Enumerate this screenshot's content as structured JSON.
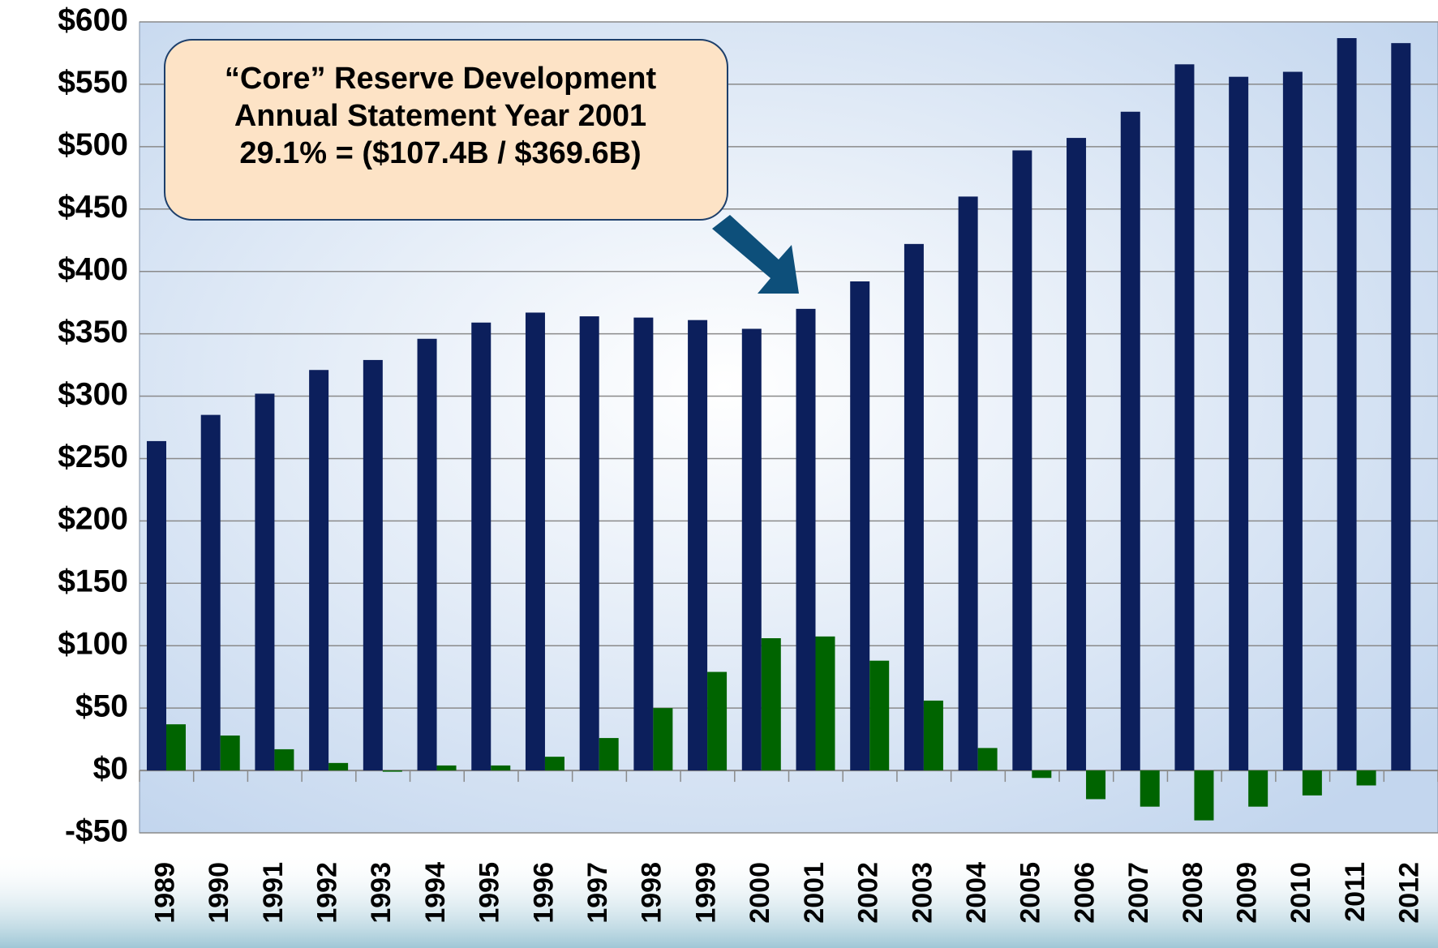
{
  "chart_data": {
    "type": "bar",
    "annotation": [
      "“Core” Reserve Development",
      "Annual Statement Year 2001",
      "29.1% = ($107.4B / $369.6B)"
    ],
    "categories": [
      "1989",
      "1990",
      "1991",
      "1992",
      "1993",
      "1994",
      "1995",
      "1996",
      "1997",
      "1998",
      "1999",
      "2000",
      "2001",
      "2002",
      "2003",
      "2004",
      "2005",
      "2006",
      "2007",
      "2008",
      "2009",
      "2010",
      "2011",
      "2012"
    ],
    "series": [
      {
        "color": "#0c1f5c",
        "values": [
          264,
          285,
          302,
          321,
          329,
          346,
          359,
          367,
          364,
          363,
          361,
          354,
          370,
          392,
          422,
          460,
          497,
          507,
          528,
          566,
          556,
          560,
          587,
          583
        ]
      },
      {
        "color": "#006400",
        "values": [
          37,
          28,
          17,
          6,
          -1,
          4,
          4,
          11,
          26,
          50,
          79,
          106,
          107.4,
          88,
          56,
          18,
          -6,
          -23,
          -29,
          -40,
          -29,
          -20,
          -12,
          null
        ]
      }
    ],
    "ylim": [
      -50,
      600
    ],
    "yticks": [
      {
        "value": -50,
        "label": "-$50"
      },
      {
        "value": 0,
        "label": "$0"
      },
      {
        "value": 50,
        "label": "$50"
      },
      {
        "value": 100,
        "label": "$100"
      },
      {
        "value": 150,
        "label": "$150"
      },
      {
        "value": 200,
        "label": "$200"
      },
      {
        "value": 250,
        "label": "$250"
      },
      {
        "value": 300,
        "label": "$300"
      },
      {
        "value": 350,
        "label": "$350"
      },
      {
        "value": 400,
        "label": "$400"
      },
      {
        "value": 450,
        "label": "$450"
      },
      {
        "value": 500,
        "label": "$500"
      },
      {
        "value": 550,
        "label": "$550"
      },
      {
        "value": 600,
        "label": "$600"
      }
    ],
    "grid": true
  }
}
